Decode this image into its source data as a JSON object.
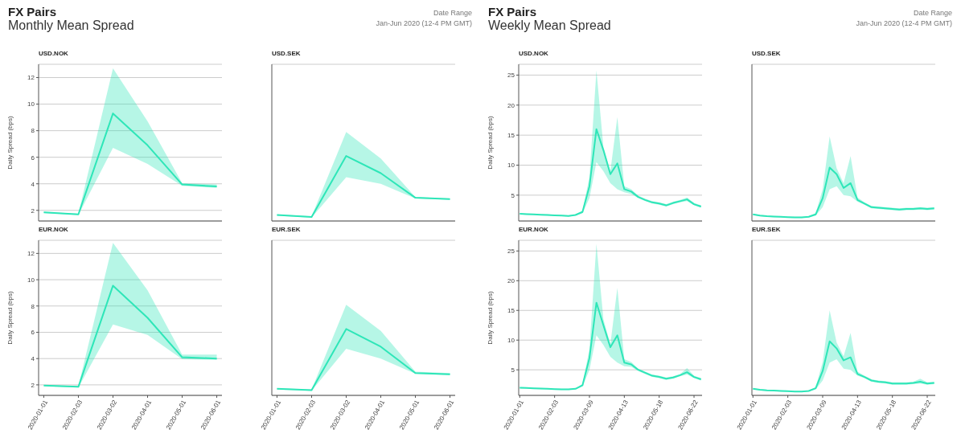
{
  "chart_data": [
    {
      "type": "other",
      "title": "FX Pairs",
      "subtitle": "Monthly Mean Spread",
      "annotations": [
        "Date Range",
        "Jan-Jun 2020 (12-4 PM GMT)"
      ]
    },
    {
      "type": "line",
      "title": "USD.NOK",
      "ylabel": "Daily Spread (bps)",
      "categories": [
        "2020-01-01",
        "2020-02-03",
        "2020-03-02",
        "2020-04-01",
        "2020-05-01",
        "2020-06-01"
      ],
      "ylim": [
        1.2,
        13
      ],
      "yticks": [
        2,
        4,
        6,
        8,
        10,
        12
      ],
      "grid": "y",
      "tick_labels": "y",
      "series": [
        {
          "color": "#2ee6b8",
          "values": [
            1.85,
            1.7,
            9.3,
            6.9,
            3.95,
            3.8
          ],
          "lower": [
            1.8,
            1.65,
            6.7,
            5.5,
            3.85,
            3.7
          ],
          "upper": [
            1.9,
            1.75,
            12.7,
            8.7,
            4.05,
            3.95
          ]
        }
      ]
    },
    {
      "type": "line",
      "title": "USD.SEK",
      "categories": [
        "2020-01-01",
        "2020-02-03",
        "2020-03-02",
        "2020-04-01",
        "2020-05-01",
        "2020-06-01"
      ],
      "ylim": [
        1.2,
        13
      ],
      "yticks": [
        2,
        4,
        6,
        8,
        10,
        12
      ],
      "grid": "y",
      "tick_labels": false,
      "series": [
        {
          "color": "#2ee6b8",
          "values": [
            1.65,
            1.5,
            6.1,
            4.8,
            2.95,
            2.85
          ],
          "lower": [
            1.6,
            1.45,
            4.5,
            4.0,
            2.9,
            2.8
          ],
          "upper": [
            1.7,
            1.55,
            7.9,
            5.9,
            3.0,
            2.9
          ]
        }
      ]
    },
    {
      "type": "line",
      "title": "EUR.NOK",
      "ylabel": "Daily Spread (bps)",
      "categories": [
        "2020-01-01",
        "2020-02-03",
        "2020-03-02",
        "2020-04-01",
        "2020-05-01",
        "2020-06-01"
      ],
      "ylim": [
        1.2,
        13
      ],
      "yticks": [
        2,
        4,
        6,
        8,
        10,
        12
      ],
      "grid": "y",
      "series": [
        {
          "color": "#2ee6b8",
          "values": [
            1.95,
            1.85,
            9.55,
            7.1,
            4.1,
            4.0
          ],
          "lower": [
            1.9,
            1.8,
            6.6,
            5.8,
            3.95,
            3.9
          ],
          "upper": [
            2.0,
            1.9,
            12.8,
            9.2,
            4.3,
            4.3
          ]
        }
      ]
    },
    {
      "type": "line",
      "title": "EUR.SEK",
      "categories": [
        "2020-01-01",
        "2020-02-03",
        "2020-03-02",
        "2020-04-01",
        "2020-05-01",
        "2020-06-01"
      ],
      "ylim": [
        1.2,
        13
      ],
      "yticks": [
        2,
        4,
        6,
        8,
        10,
        12
      ],
      "grid": "y",
      "tick_labels": "x",
      "series": [
        {
          "color": "#2ee6b8",
          "values": [
            1.7,
            1.6,
            6.25,
            4.9,
            2.9,
            2.8
          ],
          "lower": [
            1.65,
            1.55,
            4.75,
            4.0,
            2.85,
            2.75
          ],
          "upper": [
            1.75,
            1.65,
            8.1,
            6.1,
            3.0,
            2.9
          ]
        }
      ]
    },
    {
      "type": "other",
      "title": "FX Pairs",
      "subtitle": "Weekly Mean Spread",
      "annotations": [
        "Date Range",
        "Jan-Jun 2020 (12-4 PM GMT)"
      ]
    },
    {
      "type": "line",
      "title": "USD.NOK",
      "ylabel": "Daily Spread (bps)",
      "categories": [
        "2020-01-01",
        null,
        null,
        null,
        null,
        "2020-02-03",
        null,
        null,
        null,
        null,
        "2020-03-09",
        null,
        null,
        null,
        null,
        "2020-04-13",
        null,
        null,
        null,
        null,
        "2020-05-18",
        null,
        null,
        null,
        null,
        "2020-06-22",
        null
      ],
      "ylim": [
        0.7,
        26.8
      ],
      "yticks": [
        5,
        10,
        15,
        20,
        25
      ],
      "grid": "y",
      "tick_labels": "y",
      "series": [
        {
          "color": "#2ee6b8",
          "values": [
            1.9,
            1.85,
            1.8,
            1.75,
            1.7,
            1.65,
            1.6,
            1.55,
            1.7,
            2.2,
            6.5,
            16,
            12.5,
            8.5,
            10.3,
            6,
            5.6,
            4.7,
            4.2,
            3.8,
            3.6,
            3.3,
            3.7,
            4,
            4.3,
            3.5,
            3.1
          ],
          "lower": [
            1.8,
            1.75,
            1.7,
            1.65,
            1.6,
            1.55,
            1.5,
            1.45,
            1.6,
            2,
            4.5,
            10.5,
            9,
            7,
            6,
            5.5,
            5.2,
            4.5,
            4,
            3.6,
            3.4,
            3.1,
            3.5,
            3.8,
            4,
            3.3,
            2.9
          ],
          "upper": [
            2,
            1.95,
            1.9,
            1.85,
            1.8,
            1.75,
            1.7,
            1.65,
            1.8,
            2.4,
            8,
            25.8,
            13,
            9,
            18,
            6.5,
            6,
            4.9,
            4.4,
            4,
            3.8,
            3.5,
            3.9,
            4.2,
            4.6,
            3.7,
            3.3
          ]
        }
      ]
    },
    {
      "type": "line",
      "title": "USD.SEK",
      "categories": [
        "2020-01-01",
        null,
        null,
        null,
        null,
        "2020-02-03",
        null,
        null,
        null,
        null,
        "2020-03-09",
        null,
        null,
        null,
        null,
        "2020-04-13",
        null,
        null,
        null,
        null,
        "2020-05-18",
        null,
        null,
        null,
        null,
        "2020-06-22",
        null
      ],
      "ylim": [
        0.7,
        26.8
      ],
      "yticks": [
        5,
        10,
        15,
        20,
        25
      ],
      "grid": "y",
      "tick_labels": false,
      "series": [
        {
          "color": "#2ee6b8",
          "values": [
            1.8,
            1.6,
            1.5,
            1.45,
            1.4,
            1.35,
            1.3,
            1.3,
            1.4,
            1.8,
            4.5,
            9.6,
            8.5,
            6.2,
            7,
            4.2,
            3.6,
            3,
            2.9,
            2.8,
            2.7,
            2.6,
            2.7,
            2.7,
            2.8,
            2.7,
            2.8
          ],
          "lower": [
            1.7,
            1.5,
            1.4,
            1.35,
            1.3,
            1.25,
            1.2,
            1.2,
            1.3,
            1.6,
            3,
            6,
            6.5,
            5,
            4.8,
            3.9,
            3.4,
            2.8,
            2.7,
            2.6,
            2.5,
            2.4,
            2.5,
            2.5,
            2.6,
            2.5,
            2.6
          ],
          "upper": [
            1.9,
            1.7,
            1.6,
            1.55,
            1.5,
            1.45,
            1.4,
            1.4,
            1.5,
            2,
            6,
            14.8,
            9.5,
            7,
            11.5,
            4.6,
            3.8,
            3.2,
            3.1,
            3,
            2.9,
            2.8,
            2.9,
            2.9,
            3,
            2.9,
            3
          ]
        }
      ]
    },
    {
      "type": "line",
      "title": "EUR.NOK",
      "ylabel": "Daily Spread (bps)",
      "categories": [
        "2020-01-01",
        null,
        null,
        null,
        null,
        "2020-02-03",
        null,
        null,
        null,
        null,
        "2020-03-09",
        null,
        null,
        null,
        null,
        "2020-04-13",
        null,
        null,
        null,
        null,
        "2020-05-18",
        null,
        null,
        null,
        null,
        "2020-06-22",
        null
      ],
      "ylim": [
        0.7,
        26.8
      ],
      "yticks": [
        5,
        10,
        15,
        20,
        25
      ],
      "grid": "y",
      "series": [
        {
          "color": "#2ee6b8",
          "values": [
            2,
            1.95,
            1.9,
            1.85,
            1.8,
            1.75,
            1.7,
            1.7,
            1.8,
            2.4,
            7,
            16.3,
            12.5,
            8.8,
            10.8,
            6.2,
            5.9,
            5,
            4.5,
            4,
            3.8,
            3.5,
            3.7,
            4.1,
            4.6,
            3.8,
            3.4
          ],
          "lower": [
            1.9,
            1.85,
            1.8,
            1.75,
            1.7,
            1.65,
            1.6,
            1.6,
            1.7,
            2.2,
            5,
            10.8,
            9.2,
            7.2,
            6.2,
            5.6,
            5.5,
            4.8,
            4.3,
            3.8,
            3.6,
            3.3,
            3.5,
            3.9,
            4.2,
            3.6,
            3.2
          ],
          "upper": [
            2.1,
            2.05,
            2,
            1.95,
            1.9,
            1.85,
            1.8,
            1.8,
            1.9,
            2.6,
            8.5,
            26.2,
            13.5,
            9.3,
            18.8,
            6.8,
            6.3,
            5.2,
            4.7,
            4.2,
            4,
            3.7,
            3.9,
            4.3,
            5.3,
            4,
            3.6
          ]
        }
      ]
    },
    {
      "type": "line",
      "title": "EUR.SEK",
      "categories": [
        "2020-01-01",
        null,
        null,
        null,
        null,
        "2020-02-03",
        null,
        null,
        null,
        null,
        "2020-03-09",
        null,
        null,
        null,
        null,
        "2020-04-13",
        null,
        null,
        null,
        null,
        "2020-05-18",
        null,
        null,
        null,
        null,
        "2020-06-22",
        null
      ],
      "ylim": [
        0.7,
        26.8
      ],
      "yticks": [
        5,
        10,
        15,
        20,
        25
      ],
      "grid": "y",
      "tick_labels": "x",
      "series": [
        {
          "color": "#2ee6b8",
          "values": [
            1.8,
            1.65,
            1.55,
            1.5,
            1.45,
            1.4,
            1.35,
            1.35,
            1.45,
            1.9,
            4.8,
            9.8,
            8.6,
            6.6,
            7.1,
            4.3,
            3.8,
            3.2,
            3,
            2.9,
            2.7,
            2.7,
            2.7,
            2.8,
            3,
            2.7,
            2.8
          ],
          "lower": [
            1.7,
            1.55,
            1.45,
            1.4,
            1.35,
            1.3,
            1.25,
            1.25,
            1.35,
            1.7,
            3.2,
            6.2,
            6.8,
            5.2,
            5,
            4,
            3.6,
            3,
            2.8,
            2.7,
            2.5,
            2.5,
            2.5,
            2.6,
            2.7,
            2.5,
            2.6
          ],
          "upper": [
            1.9,
            1.75,
            1.65,
            1.6,
            1.55,
            1.5,
            1.45,
            1.45,
            1.55,
            2.1,
            6.3,
            15,
            9.6,
            7.3,
            11.2,
            4.7,
            4,
            3.4,
            3.2,
            3.1,
            2.9,
            2.9,
            2.9,
            3,
            3.5,
            2.9,
            3
          ]
        }
      ]
    }
  ]
}
